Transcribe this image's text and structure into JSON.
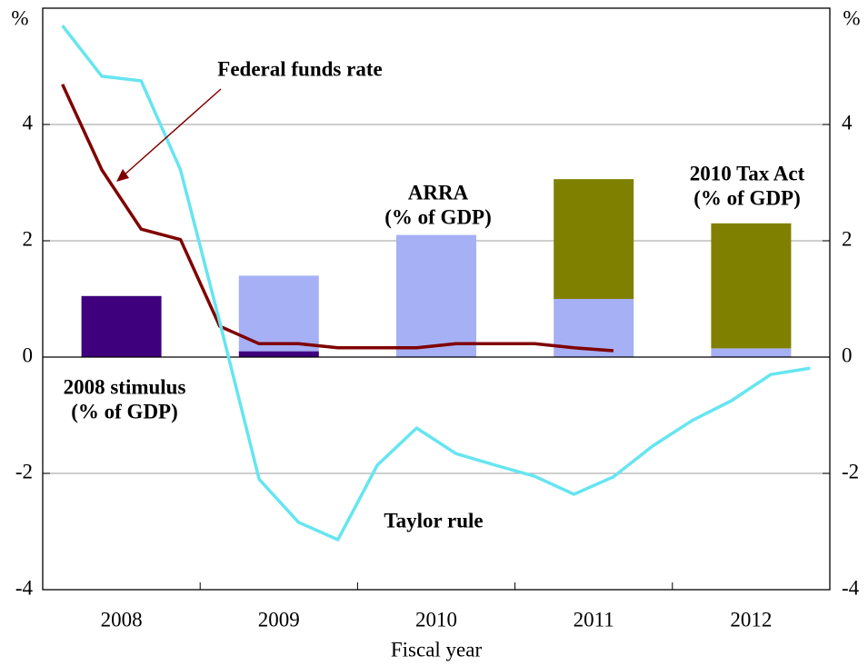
{
  "chart_data": {
    "type": "bar",
    "x_label": "Fiscal year",
    "y_unit": "%",
    "categories": [
      "2008",
      "2009",
      "2010",
      "2011",
      "2012"
    ],
    "ylim": [
      -4,
      6
    ],
    "yticks": [
      -4,
      -2,
      0,
      2,
      4
    ],
    "grid": true,
    "series": [
      {
        "name": "2008 stimulus (% of GDP)",
        "color": "#3f007d",
        "values": [
          1.05,
          0.1,
          null,
          null,
          null
        ]
      },
      {
        "name": "ARRA (% of GDP)",
        "color": "#a6b0f5",
        "values": [
          null,
          1.3,
          2.1,
          1.0,
          0.15
        ]
      },
      {
        "name": "2010 Tax Act (% of GDP)",
        "color": "#808000",
        "values": [
          null,
          null,
          null,
          2.06,
          2.15
        ]
      }
    ],
    "lines": [
      {
        "name": "Federal funds rate",
        "color": "#800000",
        "values": [
          4.69,
          3.22,
          2.2,
          2.02,
          0.53,
          0.23,
          0.23,
          0.16,
          0.16,
          0.16,
          0.23,
          0.23,
          0.23,
          0.16,
          0.11,
          null,
          null,
          null,
          null,
          null
        ]
      },
      {
        "name": "Taylor rule",
        "color": "#66e5f0",
        "values": [
          5.7,
          4.83,
          4.75,
          3.22,
          0.6,
          -2.1,
          -2.84,
          -3.14,
          -1.86,
          -1.22,
          -1.66,
          -1.86,
          -2.05,
          -2.36,
          -2.06,
          -1.53,
          -1.09,
          -0.75,
          -0.3,
          -0.19
        ]
      }
    ],
    "annotations": [
      {
        "lines": [
          "Federal funds rate"
        ],
        "color": "#800000"
      },
      {
        "lines": [
          "ARRA",
          "(% of GDP)"
        ],
        "color": "#a6b0f5"
      },
      {
        "lines": [
          "2010 Tax Act",
          "(% of GDP)"
        ],
        "color": "#808000"
      },
      {
        "lines": [
          "2008 stimulus",
          "(% of GDP)"
        ],
        "color": "#3f007d"
      },
      {
        "lines": [
          "Taylor rule"
        ],
        "color": "#66e5f0"
      }
    ]
  }
}
